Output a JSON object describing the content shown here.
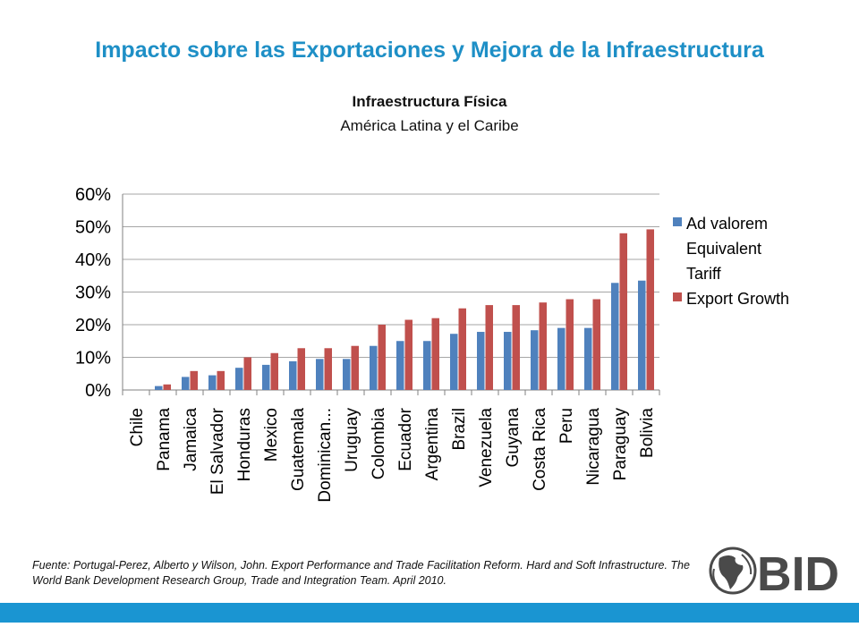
{
  "slide": {
    "title": "Impacto sobre las Exportaciones y Mejora de la Infraestructura",
    "source": "Fuente: Portugal-Perez, Alberto y Wilson, John. Export Performance and Trade Facilitation Reform. Hard and Soft Infrastructure. The World Bank Development Research Group, Trade and Integration Team. April 2010.",
    "logo_text": "BID",
    "colors": {
      "title": "#1e8fc6",
      "bar": "#1a95d2"
    }
  },
  "chart_data": {
    "type": "bar",
    "title": "Infraestructura Física",
    "subtitle": "América Latina y el Caribe",
    "xlabel": "",
    "ylabel": "",
    "ylim": [
      0,
      0.6
    ],
    "yticks": [
      0,
      0.1,
      0.2,
      0.3,
      0.4,
      0.5,
      0.6
    ],
    "ytick_labels": [
      "0%",
      "10%",
      "20%",
      "30%",
      "40%",
      "50%",
      "60%"
    ],
    "grid": true,
    "legend_position": "right",
    "categories": [
      "Chile",
      "Panama",
      "Jamaica",
      "El Salvador",
      "Honduras",
      "Mexico",
      "Guatemala",
      "Dominican...",
      "Uruguay",
      "Colombia",
      "Ecuador",
      "Argentina",
      "Brazil",
      "Venezuela",
      "Guyana",
      "Costa Rica",
      "Peru",
      "Nicaragua",
      "Paraguay",
      "Bolivia"
    ],
    "series": [
      {
        "name": "Ad valorem Equivalent Tariff",
        "legend_lines": [
          "Ad valorem",
          "Equivalent",
          "Tariff"
        ],
        "color": "#4f81bd",
        "values": [
          0,
          0.012,
          0.04,
          0.045,
          0.068,
          0.077,
          0.088,
          0.095,
          0.095,
          0.135,
          0.15,
          0.15,
          0.172,
          0.178,
          0.178,
          0.183,
          0.19,
          0.19,
          0.328,
          0.335
        ]
      },
      {
        "name": "Export Growth",
        "legend_lines": [
          "Export Growth"
        ],
        "color": "#c0504d",
        "values": [
          0,
          0.017,
          0.058,
          0.058,
          0.1,
          0.113,
          0.128,
          0.128,
          0.135,
          0.2,
          0.215,
          0.22,
          0.25,
          0.26,
          0.26,
          0.268,
          0.278,
          0.278,
          0.48,
          0.492
        ]
      }
    ]
  }
}
